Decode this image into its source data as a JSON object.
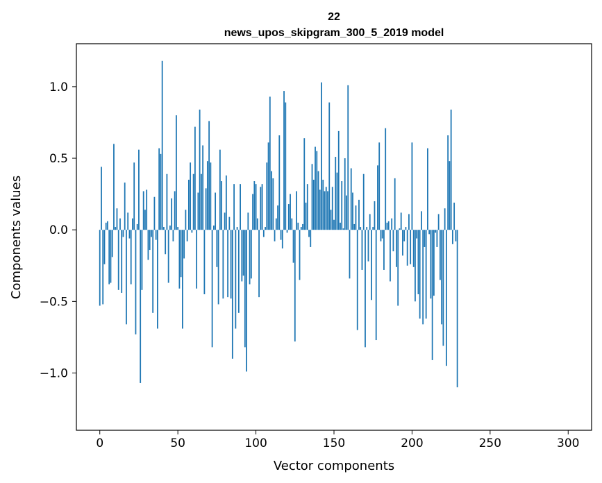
{
  "chart_data": {
    "type": "bar",
    "title_line1": "22",
    "title_line2": "news_upos_skipgram_300_5_2019 model",
    "xlabel": "Vector components",
    "ylabel": "Components values",
    "xlim": [
      -15,
      315
    ],
    "ylim": [
      -1.4,
      1.3
    ],
    "xticks": [
      0,
      50,
      100,
      150,
      200,
      250,
      300
    ],
    "xtick_labels": [
      "0",
      "50",
      "100",
      "150",
      "200",
      "250",
      "300"
    ],
    "yticks": [
      -1.0,
      -0.5,
      0.0,
      0.5,
      1.0
    ],
    "ytick_labels": [
      "−1.0",
      "−0.5",
      "0.0",
      "0.5",
      "1.0"
    ],
    "bar_color": "#1f77b4",
    "values": [
      -0.53,
      0.44,
      -0.52,
      -0.24,
      0.05,
      0.06,
      -0.38,
      -0.37,
      -0.19,
      0.6,
      0.02,
      0.15,
      -0.42,
      0.08,
      -0.44,
      -0.05,
      0.33,
      -0.66,
      0.12,
      -0.06,
      -0.38,
      0.08,
      0.47,
      -0.73,
      0.04,
      0.56,
      -1.07,
      -0.42,
      0.27,
      0.14,
      0.28,
      -0.21,
      -0.14,
      -0.05,
      -0.58,
      0.23,
      -0.07,
      -0.69,
      0.57,
      0.53,
      1.18,
      0.02,
      -0.17,
      0.39,
      -0.37,
      0.03,
      0.22,
      -0.08,
      0.27,
      0.8,
      0.02,
      -0.41,
      -0.33,
      -0.69,
      -0.2,
      0.14,
      -0.08,
      0.35,
      0.47,
      -0.02,
      0.39,
      0.72,
      -0.41,
      0.26,
      0.84,
      0.39,
      0.59,
      -0.45,
      0.29,
      0.48,
      0.76,
      0.47,
      -0.82,
      0.03,
      0.26,
      -0.26,
      -0.52,
      0.56,
      0.34,
      -0.48,
      0.12,
      0.38,
      -0.47,
      0.09,
      -0.48,
      -0.9,
      0.32,
      -0.69,
      0.02,
      -0.58,
      0.32,
      -0.36,
      -0.32,
      -0.82,
      -0.99,
      0.12,
      -0.38,
      -0.34,
      0.25,
      0.34,
      0.32,
      0.08,
      -0.47,
      0.3,
      0.32,
      -0.05,
      0.02,
      0.47,
      0.61,
      0.93,
      0.41,
      0.36,
      -0.08,
      0.08,
      0.17,
      0.66,
      -0.07,
      -0.13,
      0.97,
      0.89,
      -0.02,
      0.18,
      0.25,
      0.08,
      -0.23,
      -0.78,
      0.27,
      0.05,
      -0.35,
      0.02,
      0.04,
      0.64,
      0.19,
      0.32,
      -0.05,
      -0.12,
      0.46,
      0.35,
      0.58,
      0.55,
      0.41,
      0.28,
      1.03,
      0.35,
      0.27,
      0.3,
      0.27,
      0.89,
      0.14,
      0.3,
      0.07,
      0.51,
      0.4,
      0.69,
      0.05,
      0.34,
      0.01,
      0.5,
      0.24,
      1.01,
      -0.34,
      0.43,
      0.26,
      0.04,
      0.17,
      -0.7,
      0.21,
      0.02,
      -0.28,
      0.39,
      -0.82,
      0.02,
      -0.22,
      0.11,
      -0.49,
      0.02,
      0.2,
      -0.77,
      0.45,
      0.61,
      -0.08,
      -0.06,
      -0.28,
      0.71,
      0.05,
      0.06,
      -0.36,
      0.08,
      -0.15,
      0.36,
      -0.26,
      -0.53,
      0.01,
      0.12,
      -0.18,
      -0.08,
      0.02,
      -0.25,
      0.11,
      -0.24,
      0.61,
      -0.26,
      -0.5,
      -0.06,
      -0.45,
      -0.62,
      0.13,
      -0.66,
      -0.12,
      -0.62,
      0.57,
      -0.03,
      -0.48,
      -0.91,
      -0.46,
      -0.02,
      -0.12,
      0.11,
      -0.35,
      -0.66,
      -0.81,
      0.15,
      -0.95,
      0.66,
      0.48,
      0.84,
      -0.1,
      0.19,
      -0.08,
      -1.1
    ]
  }
}
